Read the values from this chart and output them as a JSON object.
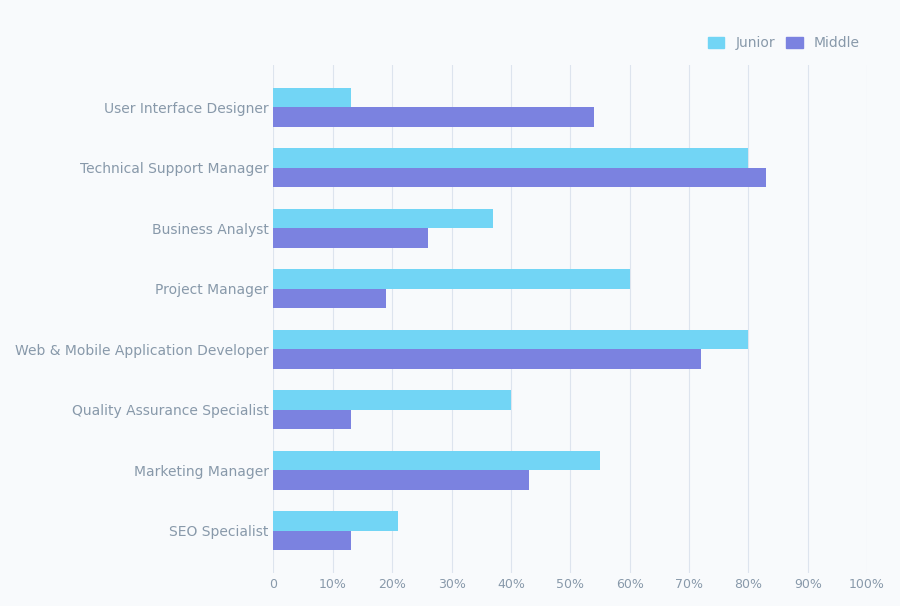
{
  "categories": [
    "User Interface Designer",
    "Technical Support Manager",
    "Business Analyst",
    "Project Manager",
    "Web & Mobile Application Developer",
    "Quality Assurance Specialist",
    "Marketing Manager",
    "SEO Specialist"
  ],
  "junior": [
    13,
    80,
    37,
    60,
    80,
    40,
    55,
    21
  ],
  "middle": [
    54,
    83,
    26,
    19,
    72,
    13,
    43,
    13
  ],
  "junior_color": "#72d5f5",
  "middle_color": "#7b82e0",
  "background_color": "#f8fafc",
  "grid_color": "#dde4ee",
  "label_color": "#8899aa",
  "bar_height": 0.32,
  "xlim": [
    0,
    100
  ],
  "xticks": [
    0,
    10,
    20,
    30,
    40,
    50,
    60,
    70,
    80,
    90,
    100
  ],
  "xtick_labels": [
    "0",
    "10%",
    "20%",
    "30%",
    "40%",
    "50%",
    "60%",
    "70%",
    "80%",
    "90%",
    "100%"
  ],
  "legend_labels": [
    "Junior",
    "Middle"
  ],
  "font_size": 10,
  "tick_font_size": 9
}
